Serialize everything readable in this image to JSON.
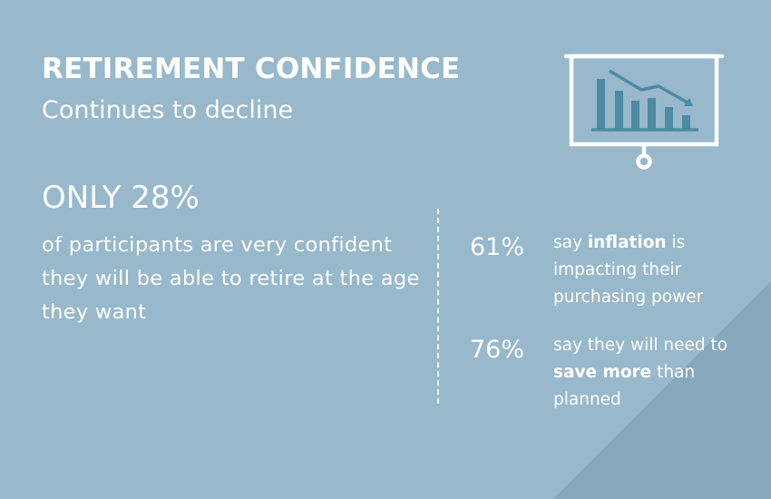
{
  "header": {
    "title": "RETIREMENT CONFIDENCE",
    "subtitle": "Continues to decline"
  },
  "icon": {
    "name": "presentation-chart-declining-icon",
    "color": "#ffffff",
    "bar_color": "#4d8aa3"
  },
  "headline": {
    "stat": "ONLY 28%",
    "description": "of participants are very confident they will be able to retire at the age they want"
  },
  "stats": [
    {
      "number": "61%",
      "pre": "say ",
      "bold": "inflation",
      "post": " is impacting their purchasing power"
    },
    {
      "number": "76%",
      "pre": "say they will need to ",
      "bold": "save more",
      "post": " than planned"
    }
  ],
  "colors": {
    "background": "#98b8cb",
    "triangle": "#86a9bd",
    "text": "#ffffff"
  }
}
